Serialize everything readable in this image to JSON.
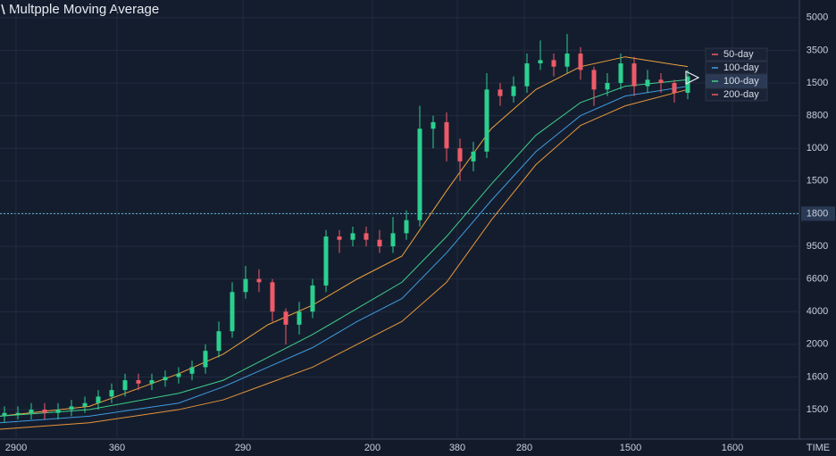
{
  "chart_data": {
    "type": "candlestick",
    "title": "Multpple Moving Average",
    "x_label": "TIME",
    "xlim": [
      0,
      895
    ],
    "ylim": [
      -0.9,
      12.54
    ],
    "xticks": [
      {
        "value": 18,
        "label": "2900"
      },
      {
        "value": 131,
        "label": "360"
      },
      {
        "value": 272,
        "label": "290"
      },
      {
        "value": 417,
        "label": "200"
      },
      {
        "value": 512,
        "label": "380"
      },
      {
        "value": 587,
        "label": "280"
      },
      {
        "value": 706,
        "label": "1500"
      },
      {
        "value": 820,
        "label": "1600"
      }
    ],
    "yticks": [
      {
        "value": 12,
        "label": "5000"
      },
      {
        "value": 11,
        "label": "3500"
      },
      {
        "value": 10,
        "label": "1500"
      },
      {
        "value": 9,
        "label": "8800"
      },
      {
        "value": 8,
        "label": "1000"
      },
      {
        "value": 7,
        "label": "1500"
      },
      {
        "value": 6,
        "label": "1800"
      },
      {
        "value": 5,
        "label": "9500"
      },
      {
        "value": 4,
        "label": "6600"
      },
      {
        "value": 3,
        "label": "4000"
      },
      {
        "value": 2,
        "label": "2000"
      },
      {
        "value": 1,
        "label": "1600"
      },
      {
        "value": 0,
        "label": "1500"
      }
    ],
    "grid": true,
    "up_color": "#2bd08f",
    "down_color": "#ef5a68",
    "candles": {
      "x": [
        5,
        20,
        35,
        50,
        65,
        80,
        95,
        110,
        125,
        140,
        155,
        170,
        185,
        200,
        215,
        230,
        245,
        260,
        275,
        290,
        305,
        320,
        335,
        350,
        365,
        380,
        395,
        410,
        425,
        440,
        455,
        470,
        485,
        500,
        515,
        530,
        545,
        560,
        575,
        590,
        605,
        620,
        635,
        650,
        665,
        680,
        695,
        710,
        725,
        740,
        755,
        770
      ],
      "open": [
        -0.2,
        -0.1,
        -0.1,
        0.0,
        -0.1,
        0.0,
        0.1,
        0.2,
        0.4,
        0.6,
        0.9,
        0.8,
        0.9,
        1.0,
        1.1,
        1.3,
        1.8,
        2.4,
        3.6,
        4.0,
        3.9,
        3.0,
        2.6,
        3.0,
        3.8,
        5.3,
        5.2,
        5.4,
        5.2,
        5.0,
        5.4,
        5.8,
        8.6,
        8.8,
        8.0,
        7.6,
        7.9,
        9.8,
        9.6,
        9.9,
        10.6,
        10.7,
        10.5,
        10.9,
        10.4,
        9.8,
        10.0,
        10.6,
        9.9,
        10.1,
        10.0,
        9.7
      ],
      "high": [
        0.1,
        0.1,
        0.2,
        0.2,
        0.2,
        0.3,
        0.4,
        0.6,
        0.8,
        1.1,
        1.1,
        1.1,
        1.2,
        1.3,
        1.5,
        2.0,
        2.7,
        3.9,
        4.4,
        4.3,
        4.0,
        3.1,
        3.3,
        4.0,
        5.5,
        5.5,
        5.6,
        5.6,
        5.5,
        5.9,
        6.1,
        9.3,
        9.0,
        9.1,
        8.3,
        8.2,
        10.3,
        10.0,
        10.2,
        10.9,
        11.3,
        10.9,
        11.5,
        11.1,
        10.5,
        10.3,
        10.9,
        10.8,
        10.4,
        10.3,
        10.1,
        10.4
      ],
      "low": [
        -0.4,
        -0.3,
        -0.3,
        -0.3,
        -0.3,
        -0.2,
        -0.1,
        0.0,
        0.2,
        0.4,
        0.6,
        0.6,
        0.7,
        0.8,
        0.9,
        1.1,
        1.6,
        2.2,
        3.4,
        3.6,
        2.7,
        2.0,
        2.3,
        2.8,
        3.6,
        4.8,
        5.0,
        5.0,
        4.8,
        4.8,
        5.2,
        5.6,
        8.0,
        7.6,
        7.0,
        7.3,
        7.7,
        9.3,
        9.4,
        9.7,
        10.4,
        10.2,
        10.3,
        10.1,
        9.3,
        9.6,
        9.8,
        9.6,
        9.7,
        9.7,
        9.4,
        9.5
      ],
      "close": [
        -0.1,
        -0.1,
        0.0,
        -0.1,
        0.0,
        0.1,
        0.2,
        0.4,
        0.6,
        0.9,
        0.8,
        0.9,
        1.0,
        1.1,
        1.3,
        1.8,
        2.4,
        3.6,
        4.0,
        3.9,
        3.0,
        2.6,
        3.0,
        3.8,
        5.3,
        5.2,
        5.4,
        5.2,
        5.0,
        5.4,
        5.8,
        8.6,
        8.8,
        8.0,
        7.6,
        7.9,
        9.8,
        9.6,
        9.9,
        10.6,
        10.7,
        10.5,
        10.9,
        10.4,
        9.8,
        10.0,
        10.6,
        9.9,
        10.1,
        10.0,
        9.7,
        10.2
      ]
    },
    "series": [
      {
        "name": "50-day",
        "color": "#f0a23c",
        "x": [
          0,
          100,
          200,
          250,
          300,
          350,
          400,
          450,
          500,
          550,
          600,
          650,
          700,
          770
        ],
        "values": [
          -0.2,
          0.1,
          1.1,
          1.7,
          2.6,
          3.2,
          4.0,
          4.7,
          6.7,
          8.6,
          9.8,
          10.5,
          10.8,
          10.5
        ]
      },
      {
        "name": "100-day",
        "color": "#3f9be0",
        "x": [
          0,
          100,
          200,
          250,
          300,
          350,
          400,
          450,
          500,
          550,
          600,
          650,
          700,
          770
        ],
        "values": [
          -0.4,
          -0.2,
          0.2,
          0.7,
          1.3,
          1.9,
          2.7,
          3.4,
          4.8,
          6.4,
          7.9,
          9.0,
          9.6,
          9.9
        ]
      },
      {
        "name": "100-day",
        "color": "#3fce8a",
        "x": [
          0,
          100,
          200,
          250,
          300,
          350,
          400,
          450,
          500,
          550,
          600,
          650,
          700,
          770
        ],
        "values": [
          -0.2,
          0.0,
          0.5,
          0.9,
          1.6,
          2.3,
          3.1,
          3.9,
          5.3,
          6.9,
          8.4,
          9.4,
          9.9,
          10.1
        ]
      },
      {
        "name": "200-day",
        "color": "#e8963a",
        "x": [
          0,
          100,
          200,
          250,
          300,
          350,
          400,
          450,
          500,
          550,
          600,
          650,
          700,
          770
        ],
        "values": [
          -0.6,
          -0.4,
          0.0,
          0.3,
          0.8,
          1.3,
          2.0,
          2.7,
          3.9,
          5.8,
          7.5,
          8.7,
          9.3,
          9.8
        ]
      }
    ]
  }
}
